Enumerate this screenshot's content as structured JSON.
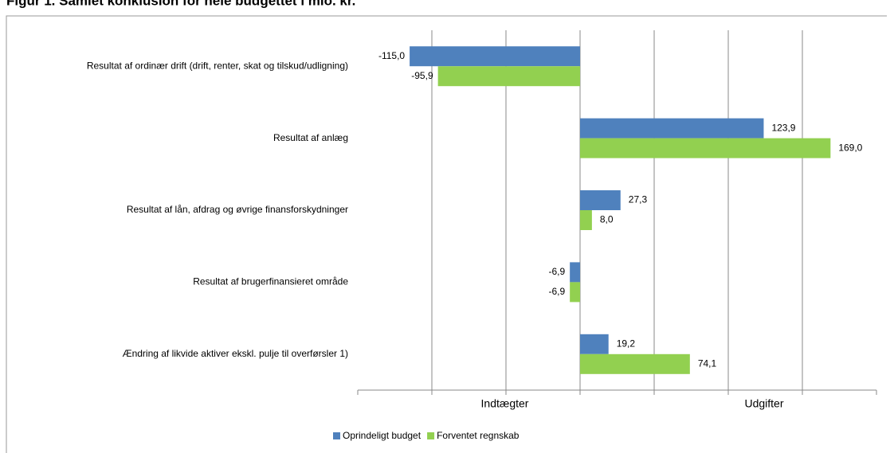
{
  "chart_data": {
    "type": "hbar",
    "title": "Figur 1. Samlet konklusion for hele budgettet i mio. kr.",
    "categories": [
      "Resultat af ordinær drift (drift, renter, skat og tilskud/udligning)",
      "Resultat af anlæg",
      "Resultat af lån, afdrag og øvrige finansforskydninger",
      "Resultat af brugerfinansieret område",
      "Ændring af likvide aktiver ekskl. pulje til overførsler 1)"
    ],
    "series": [
      {
        "name": "Oprindeligt budget",
        "color": "#4f81bd",
        "values": [
          -115.0,
          123.9,
          27.3,
          -6.9,
          19.2
        ],
        "value_labels": [
          "-115,0",
          "123,9",
          "27,3",
          "-6,9",
          "19,2"
        ]
      },
      {
        "name": "Forventet regnskab",
        "color": "#92d050",
        "values": [
          -95.9,
          169.0,
          8.0,
          -6.9,
          74.1
        ],
        "value_labels": [
          "-95,9",
          "169,0",
          "8,0",
          "-6,9",
          "74,1"
        ]
      }
    ],
    "xlim": [
      -150,
      200
    ],
    "xticks": [
      -150,
      -100,
      -50,
      0,
      50,
      100,
      150,
      200
    ],
    "grid": true,
    "axis_annotations": [
      "Indtægter",
      "Udgifter"
    ],
    "legend": "bottom"
  }
}
